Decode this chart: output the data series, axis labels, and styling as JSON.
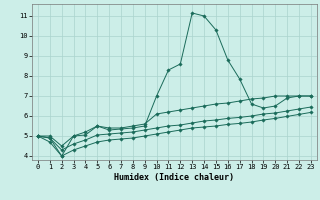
{
  "title": "",
  "xlabel": "Humidex (Indice chaleur)",
  "bg_color": "#cceee8",
  "grid_color": "#aad4ce",
  "line_color": "#1a6b5a",
  "xlim": [
    -0.5,
    23.5
  ],
  "ylim": [
    3.8,
    11.6
  ],
  "yticks": [
    4,
    5,
    6,
    7,
    8,
    9,
    10,
    11
  ],
  "xticks": [
    0,
    1,
    2,
    3,
    4,
    5,
    6,
    7,
    8,
    9,
    10,
    11,
    12,
    13,
    14,
    15,
    16,
    17,
    18,
    19,
    20,
    21,
    22,
    23
  ],
  "series": [
    [
      5.0,
      4.9,
      4.0,
      5.0,
      5.2,
      5.5,
      5.3,
      5.35,
      5.4,
      5.5,
      7.0,
      8.3,
      8.6,
      11.15,
      11.0,
      10.3,
      8.8,
      7.85,
      6.6,
      6.4,
      6.5,
      6.9,
      7.0,
      7.0
    ],
    [
      5.0,
      5.0,
      4.5,
      5.0,
      5.05,
      5.5,
      5.4,
      5.4,
      5.5,
      5.6,
      6.1,
      6.2,
      6.3,
      6.4,
      6.5,
      6.6,
      6.65,
      6.75,
      6.85,
      6.9,
      7.0,
      7.0,
      7.0,
      7.0
    ],
    [
      5.0,
      4.9,
      4.3,
      4.6,
      4.8,
      5.05,
      5.1,
      5.15,
      5.2,
      5.3,
      5.4,
      5.5,
      5.55,
      5.65,
      5.75,
      5.8,
      5.88,
      5.93,
      6.0,
      6.1,
      6.15,
      6.25,
      6.35,
      6.45
    ],
    [
      5.0,
      4.7,
      4.0,
      4.3,
      4.5,
      4.7,
      4.8,
      4.85,
      4.9,
      5.0,
      5.1,
      5.2,
      5.3,
      5.4,
      5.45,
      5.5,
      5.58,
      5.63,
      5.7,
      5.8,
      5.88,
      5.98,
      6.08,
      6.18
    ]
  ]
}
